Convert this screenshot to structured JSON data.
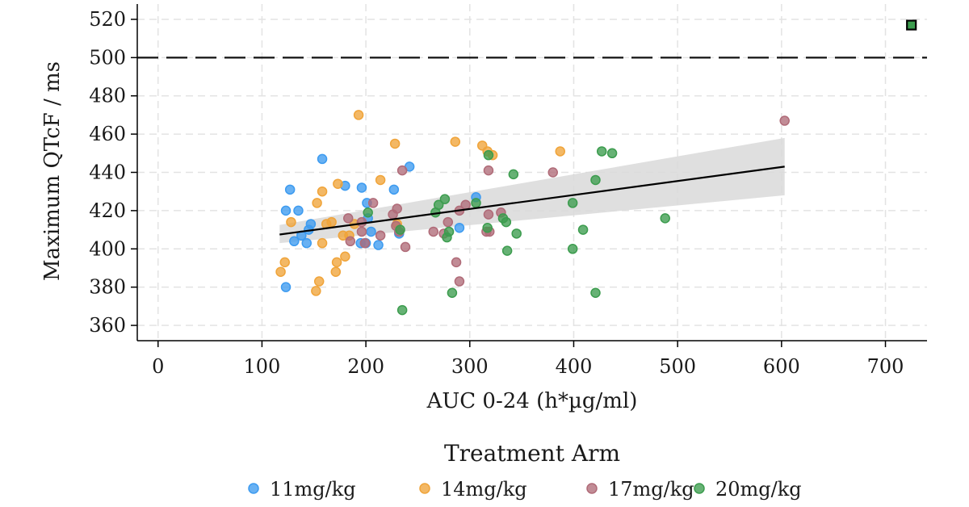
{
  "chart_data": {
    "type": "scatter",
    "title": "",
    "xlabel": "AUC 0-24 (h*µg/ml)",
    "ylabel": "Maximum QTcF / ms",
    "xlim": [
      -20,
      740
    ],
    "ylim": [
      352,
      528
    ],
    "x_ticks": [
      0,
      100,
      200,
      300,
      400,
      500,
      600,
      700
    ],
    "y_ticks": [
      360,
      380,
      400,
      420,
      440,
      460,
      480,
      500,
      520
    ],
    "grid": true,
    "reference_line": {
      "y": 500,
      "style": "dashed"
    },
    "regression": {
      "x": [
        117,
        603
      ],
      "y": [
        407.5,
        443
      ],
      "ci_lower": [
        403,
        428
      ],
      "ci_upper": [
        412.5,
        458
      ]
    },
    "legend": {
      "title": "Treatment Arm",
      "position": "bottom"
    },
    "series": [
      {
        "name": "11mg/kg",
        "color": "#3d9bf0",
        "points": [
          [
            123,
            420
          ],
          [
            135,
            420
          ],
          [
            127,
            431
          ],
          [
            123,
            380
          ],
          [
            131,
            404
          ],
          [
            138,
            407
          ],
          [
            143,
            403
          ],
          [
            145,
            410
          ],
          [
            147,
            413
          ],
          [
            158,
            447
          ],
          [
            180,
            433
          ],
          [
            196,
            432
          ],
          [
            201,
            424
          ],
          [
            202,
            416
          ],
          [
            195,
            403
          ],
          [
            200,
            403
          ],
          [
            205,
            409
          ],
          [
            212,
            402
          ],
          [
            232,
            408
          ],
          [
            227,
            431
          ],
          [
            242,
            443
          ],
          [
            290,
            411
          ],
          [
            306,
            427
          ]
        ]
      },
      {
        "name": "14mg/kg",
        "color": "#f0a43a",
        "points": [
          [
            118,
            388
          ],
          [
            122,
            393
          ],
          [
            128,
            414
          ],
          [
            152,
            378
          ],
          [
            155,
            383
          ],
          [
            158,
            403
          ],
          [
            153,
            424
          ],
          [
            158,
            430
          ],
          [
            162,
            413
          ],
          [
            167,
            414
          ],
          [
            172,
            393
          ],
          [
            171,
            388
          ],
          [
            173,
            434
          ],
          [
            178,
            407
          ],
          [
            180,
            396
          ],
          [
            184,
            407
          ],
          [
            189,
            413
          ],
          [
            193,
            470
          ],
          [
            214,
            436
          ],
          [
            228,
            455
          ],
          [
            286,
            456
          ],
          [
            312,
            454
          ],
          [
            317,
            451
          ],
          [
            322,
            449
          ],
          [
            387,
            451
          ],
          [
            230,
            413
          ]
        ]
      },
      {
        "name": "17mg/kg",
        "color": "#b06b78",
        "points": [
          [
            183,
            416
          ],
          [
            185,
            404
          ],
          [
            196,
            414
          ],
          [
            196,
            409
          ],
          [
            199,
            403
          ],
          [
            207,
            424
          ],
          [
            214,
            407
          ],
          [
            226,
            418
          ],
          [
            230,
            421
          ],
          [
            229,
            412
          ],
          [
            232,
            409
          ],
          [
            235,
            441
          ],
          [
            238,
            401
          ],
          [
            265,
            409
          ],
          [
            275,
            408
          ],
          [
            279,
            414
          ],
          [
            287,
            393
          ],
          [
            290,
            383
          ],
          [
            290,
            420
          ],
          [
            296,
            423
          ],
          [
            318,
            441
          ],
          [
            318,
            418
          ],
          [
            316,
            409
          ],
          [
            319,
            409
          ],
          [
            330,
            419
          ],
          [
            380,
            440
          ],
          [
            603,
            467
          ]
        ]
      },
      {
        "name": "20mg/kg",
        "color": "#3c9c4e",
        "points": [
          [
            202,
            419
          ],
          [
            233,
            410
          ],
          [
            235,
            368
          ],
          [
            267,
            419
          ],
          [
            270,
            423
          ],
          [
            276,
            426
          ],
          [
            278,
            406
          ],
          [
            280,
            409
          ],
          [
            283,
            377
          ],
          [
            306,
            424
          ],
          [
            317,
            411
          ],
          [
            318,
            449
          ],
          [
            332,
            416
          ],
          [
            335,
            414
          ],
          [
            336,
            399
          ],
          [
            342,
            439
          ],
          [
            345,
            408
          ],
          [
            399,
            424
          ],
          [
            399,
            400
          ],
          [
            409,
            410
          ],
          [
            421,
            436
          ],
          [
            421,
            377
          ],
          [
            427,
            451
          ],
          [
            437,
            450
          ],
          [
            488,
            416
          ],
          [
            725,
            517
          ]
        ]
      }
    ],
    "highlighted_point": {
      "x": 725,
      "y": 517
    }
  }
}
